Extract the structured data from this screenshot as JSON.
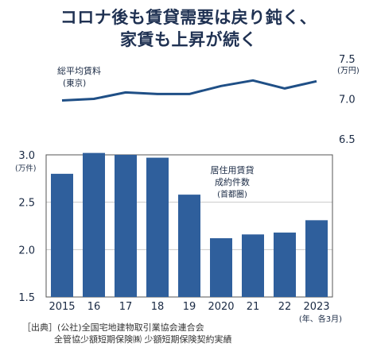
{
  "headline": {
    "line1": "コロナ後も賃貸需要は戻り鈍く、",
    "line2": "家賃も上昇が続く"
  },
  "source": {
    "line1": "［出典］(公社)全国宅地建物取引業協会連合会",
    "line2": "全管協少額短期保険㈱ 少額短期保険契約実績"
  },
  "chart_data": [
    {
      "type": "line",
      "label_line1": "総平均賃料",
      "label_line2": "(東京)",
      "unit": "(万円)",
      "x": [
        "2015",
        "16",
        "17",
        "18",
        "19",
        "2020",
        "21",
        "22",
        "2023"
      ],
      "values": [
        6.98,
        7.0,
        7.08,
        7.06,
        7.06,
        7.16,
        7.23,
        7.13,
        7.22
      ],
      "ylim": [
        6.5,
        7.5
      ],
      "yticks": [
        "7.5",
        "7.0",
        "6.5"
      ],
      "color": "#1f4f86"
    },
    {
      "type": "bar",
      "label_line1": "居住用賃貸",
      "label_line2": "成約件数",
      "label_line3": "(首都圏)",
      "unit": "(万件)",
      "categories": [
        "2015",
        "16",
        "17",
        "18",
        "19",
        "2020",
        "21",
        "22",
        "2023"
      ],
      "x_note": "(年、各3月)",
      "values": [
        2.8,
        3.02,
        3.0,
        2.97,
        2.58,
        2.12,
        2.16,
        2.18,
        2.31
      ],
      "ylim": [
        1.5,
        3.0
      ],
      "yticks": [
        "3.0",
        "2.5",
        "2.0",
        "1.5"
      ],
      "grid": "horizontal",
      "color": "#2f5f9c"
    }
  ]
}
